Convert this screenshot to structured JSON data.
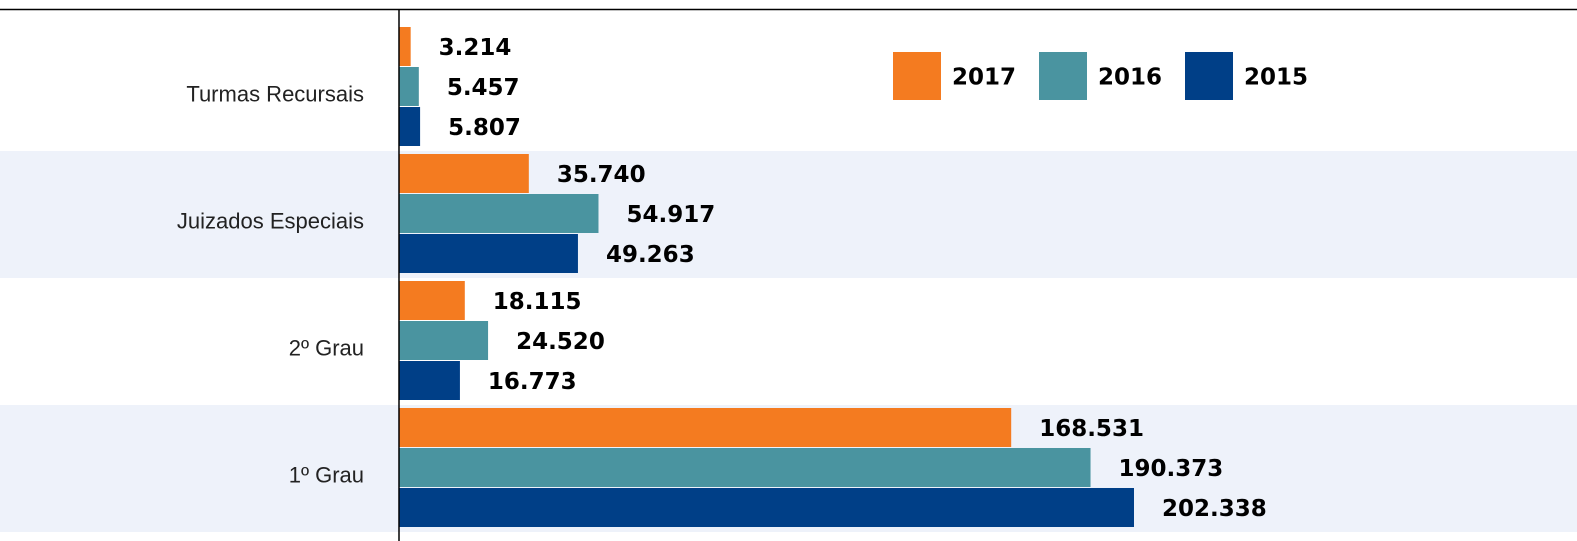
{
  "chart_data": {
    "type": "barh",
    "categories": [
      "Turmas Recursais",
      "Juizados Especiais",
      "2º Grau",
      "1º Grau"
    ],
    "series": [
      {
        "name": "2017",
        "color": "#f47b20",
        "values": [
          3214,
          35740,
          18115,
          168531
        ],
        "value_labels": [
          "3.214",
          "35.740",
          "18.115",
          "168.531"
        ]
      },
      {
        "name": "2016",
        "color": "#4a94a0",
        "values": [
          5457,
          54917,
          24520,
          190373
        ],
        "value_labels": [
          "5.457",
          "54.917",
          "24.520",
          "190.373"
        ]
      },
      {
        "name": "2015",
        "color": "#003f87",
        "values": [
          5807,
          49263,
          16773,
          202338
        ],
        "value_labels": [
          "5.807",
          "49.263",
          "16.773",
          "202.338"
        ]
      }
    ]
  }
}
